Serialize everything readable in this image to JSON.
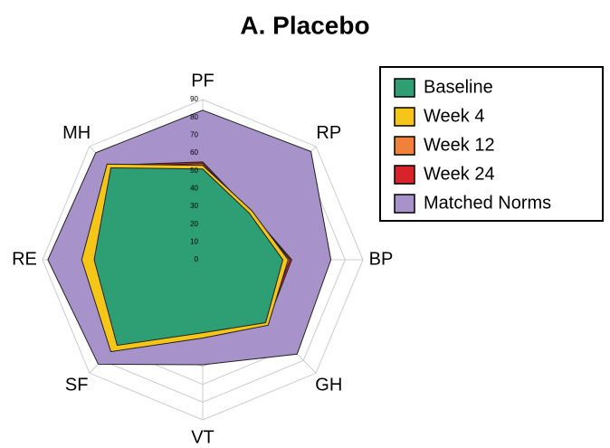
{
  "chart_data": {
    "type": "radar",
    "title": "A. Placebo",
    "categories": [
      "PF",
      "RP",
      "BP",
      "GH",
      "VT",
      "SF",
      "RE",
      "MH"
    ],
    "series": [
      {
        "name": "Baseline",
        "color": "#2e9e74",
        "values": [
          51,
          37,
          45,
          50,
          41,
          68,
          61,
          73
        ]
      },
      {
        "name": "Week 4",
        "color": "#f5c518",
        "values": [
          53,
          39,
          48,
          52,
          44,
          73,
          68,
          76
        ]
      },
      {
        "name": "Week 12",
        "color": "#f0813a",
        "values": [
          54,
          38,
          49,
          50,
          43,
          70,
          62,
          74
        ]
      },
      {
        "name": "Week 24",
        "color": "#d8232a",
        "values": [
          55,
          38,
          50,
          51,
          43,
          70,
          62,
          75
        ]
      },
      {
        "name": "Matched Norms",
        "color": "#a792c9",
        "values": [
          84,
          86,
          72,
          75,
          59,
          83,
          87,
          85
        ]
      }
    ],
    "ylim": [
      0,
      90
    ],
    "yticks": [
      0,
      10,
      20,
      30,
      40,
      50,
      60,
      70,
      80,
      90
    ],
    "grid": true,
    "legend": "upper right"
  }
}
